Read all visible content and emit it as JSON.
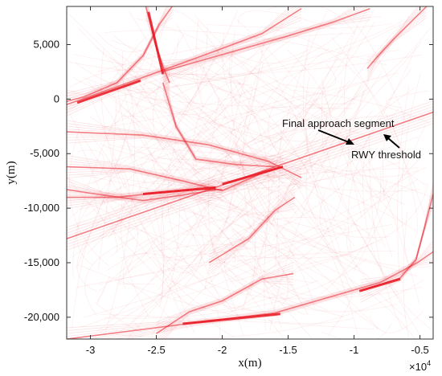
{
  "chart_data": {
    "type": "line",
    "title": "",
    "xlabel": "x(m)",
    "ylabel": "y(m)",
    "x_exponent_label": "×10",
    "x_exponent_power": "4",
    "xlim": [
      -31800,
      -4000
    ],
    "ylim": [
      -22000,
      8500
    ],
    "grid": false,
    "legend": "none",
    "x_ticks": [
      {
        "value": -30000,
        "label": "-3"
      },
      {
        "value": -25000,
        "label": "-2.5"
      },
      {
        "value": -20000,
        "label": "-2"
      },
      {
        "value": -15000,
        "label": "-1.5"
      },
      {
        "value": -10000,
        "label": "-1"
      },
      {
        "value": -5000,
        "label": "-0.5"
      }
    ],
    "y_ticks": [
      {
        "value": 5000,
        "label": "5,000"
      },
      {
        "value": 0,
        "label": "0"
      },
      {
        "value": -5000,
        "label": "-5,000"
      },
      {
        "value": -10000,
        "label": "-10,000"
      },
      {
        "value": -15000,
        "label": "-15,000"
      },
      {
        "value": -20000,
        "label": "-20,000"
      }
    ],
    "annotations": [
      {
        "text": "Final approach segment",
        "x": -10000,
        "y": -5000
      },
      {
        "text": "RWY threshold",
        "x": -7500,
        "y": -3800
      }
    ],
    "trajectory_color": "#e8141e",
    "series": [
      {
        "values": [
          [
            -31800,
            -12800
          ],
          [
            -4000,
            -1200
          ]
        ]
      },
      {
        "values": [
          [
            -31800,
            -500
          ],
          [
            -26000,
            2000
          ],
          [
            -21000,
            4200
          ],
          [
            -17000,
            6000
          ],
          [
            -14000,
            8300
          ]
        ]
      },
      {
        "values": [
          [
            -24600,
            2500
          ],
          [
            -22000,
            3400
          ],
          [
            -15000,
            5800
          ],
          [
            -11500,
            7100
          ],
          [
            -8800,
            8300
          ]
        ]
      },
      {
        "values": [
          [
            -25800,
            8500
          ],
          [
            -25000,
            4800
          ],
          [
            -24500,
            3000
          ],
          [
            -24000,
            1500
          ]
        ]
      },
      {
        "values": [
          [
            -23800,
            8500
          ],
          [
            -24800,
            6800
          ],
          [
            -26000,
            4000
          ],
          [
            -28000,
            1500
          ],
          [
            -30500,
            200
          ],
          [
            -31800,
            -200
          ]
        ]
      },
      {
        "values": [
          [
            -24500,
            1500
          ],
          [
            -23500,
            -2500
          ],
          [
            -22000,
            -5500
          ],
          [
            -19000,
            -6000
          ],
          [
            -16000,
            -6200
          ]
        ]
      },
      {
        "values": [
          [
            -31800,
            -6200
          ],
          [
            -27000,
            -6400
          ],
          [
            -23000,
            -7500
          ],
          [
            -20000,
            -8400
          ],
          [
            -17000,
            -6800
          ],
          [
            -15400,
            -6200
          ]
        ]
      },
      {
        "values": [
          [
            -31800,
            -9000
          ],
          [
            -28000,
            -9000
          ],
          [
            -25000,
            -8600
          ],
          [
            -22000,
            -8300
          ],
          [
            -20000,
            -8300
          ]
        ]
      },
      {
        "values": [
          [
            -31800,
            -8300
          ],
          [
            -29000,
            -8800
          ],
          [
            -26000,
            -9300
          ],
          [
            -23000,
            -8800
          ],
          [
            -20500,
            -8300
          ]
        ]
      },
      {
        "values": [
          [
            -14600,
            -16000
          ],
          [
            -17000,
            -16500
          ],
          [
            -20000,
            -18500
          ],
          [
            -22500,
            -19500
          ],
          [
            -25000,
            -21500
          ]
        ]
      },
      {
        "values": [
          [
            -31800,
            -22000
          ],
          [
            -22000,
            -20500
          ],
          [
            -16000,
            -19600
          ],
          [
            -8000,
            -16800
          ],
          [
            -5200,
            -15000
          ],
          [
            -4000,
            -14000
          ]
        ]
      },
      {
        "values": [
          [
            -9500,
            -17600
          ],
          [
            -6500,
            -16400
          ],
          [
            -5300,
            -14700
          ],
          [
            -4700,
            -12000
          ],
          [
            -4000,
            -8700
          ]
        ]
      },
      {
        "values": [
          [
            -31800,
            -3000
          ],
          [
            -26000,
            -3300
          ],
          [
            -21000,
            -4200
          ],
          [
            -16500,
            -5700
          ],
          [
            -14000,
            -7200
          ]
        ]
      },
      {
        "values": [
          [
            -21000,
            -15000
          ],
          [
            -18000,
            -12800
          ],
          [
            -16000,
            -10200
          ],
          [
            -14500,
            -9000
          ]
        ]
      },
      {
        "values": [
          [
            -4500,
            8500
          ],
          [
            -7000,
            5500
          ],
          [
            -8300,
            3800
          ],
          [
            -9000,
            2800
          ]
        ]
      }
    ]
  }
}
